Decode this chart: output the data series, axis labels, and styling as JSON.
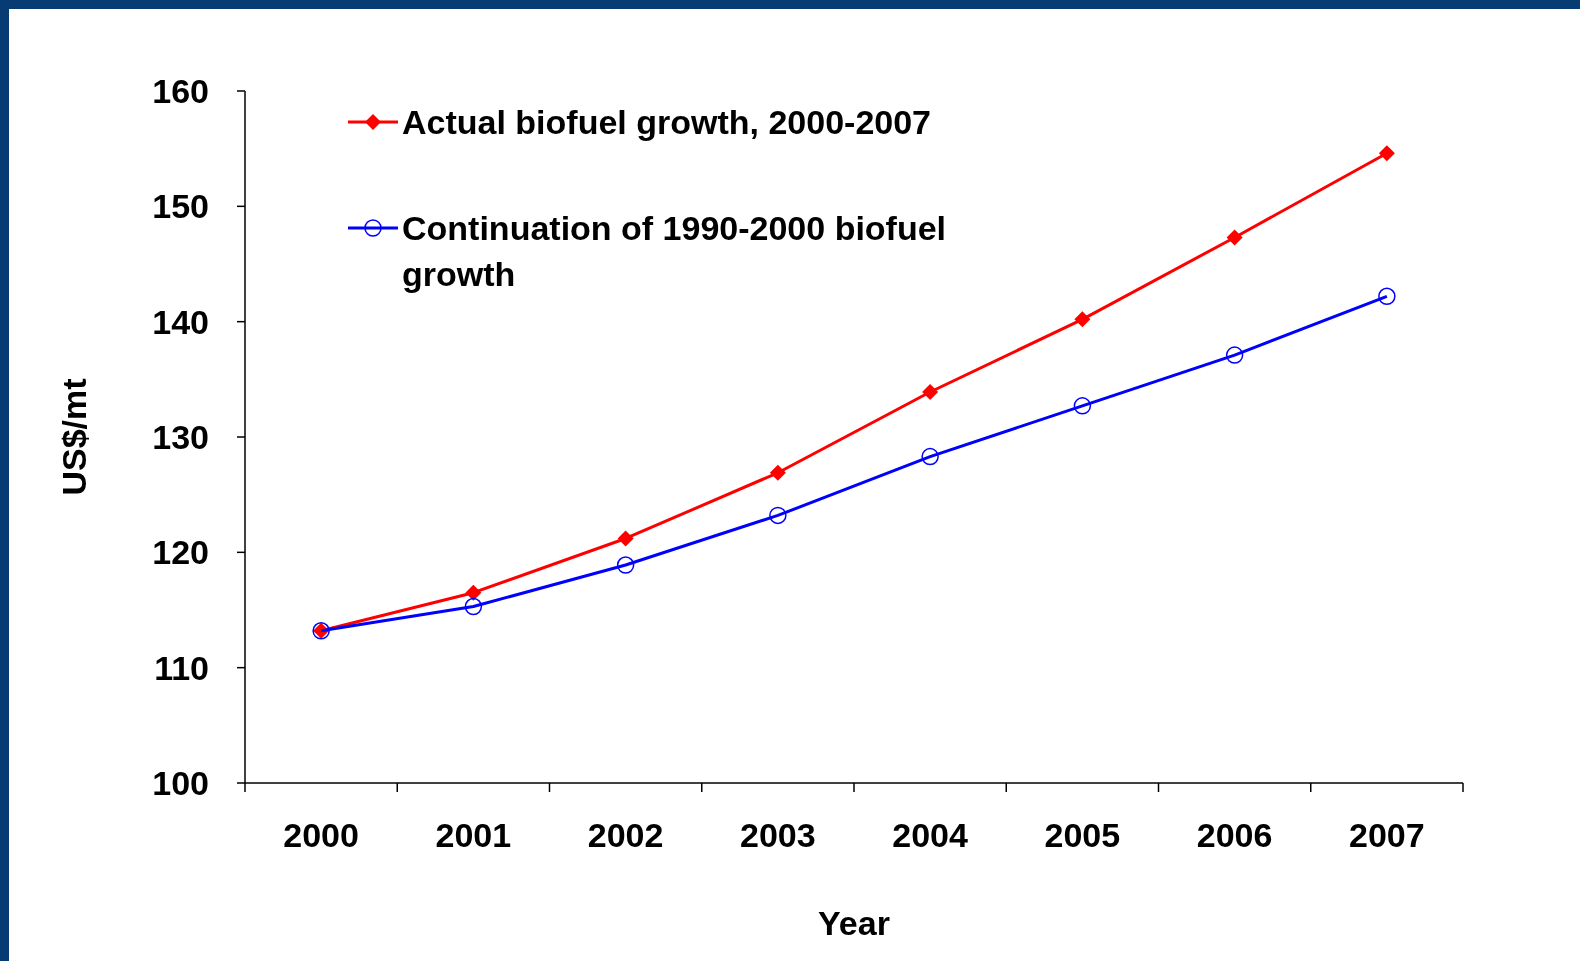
{
  "chart_data": {
    "type": "line",
    "xlabel": "Year",
    "ylabel": "US$/mt",
    "categories": [
      "2000",
      "2001",
      "2002",
      "2003",
      "2004",
      "2005",
      "2006",
      "2007"
    ],
    "ylim": [
      100,
      160
    ],
    "yticks": [
      100,
      110,
      120,
      130,
      140,
      150,
      160
    ],
    "grid": false,
    "legend": "top left",
    "series": [
      {
        "name": "Actual biofuel growth, 2000-2007",
        "color": "#ff0000",
        "marker": "diamond",
        "values": [
          113.2,
          116.5,
          121.2,
          126.9,
          133.9,
          140.2,
          147.3,
          154.6
        ]
      },
      {
        "name": "Continuation of 1990-2000 biofuel growth",
        "color": "#0000ff",
        "marker": "circle",
        "values": [
          113.2,
          115.3,
          118.9,
          123.2,
          128.3,
          132.7,
          137.1,
          142.2
        ]
      }
    ]
  }
}
